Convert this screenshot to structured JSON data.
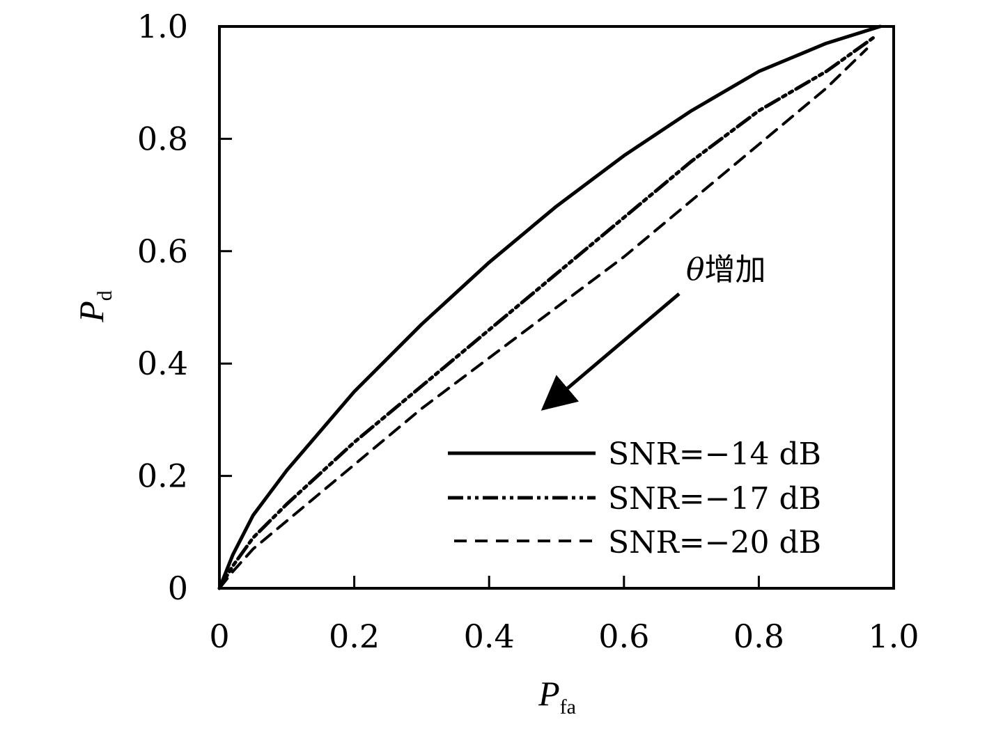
{
  "chart_data": {
    "type": "line",
    "xlabel": "P",
    "xlabel_sub": "fa",
    "ylabel": "P",
    "ylabel_sub": "d",
    "xlim": [
      0,
      1.0
    ],
    "ylim": [
      0,
      1.0
    ],
    "x_ticks": [
      "0",
      "0.2",
      "0.4",
      "0.6",
      "0.8",
      "1.0"
    ],
    "y_ticks": [
      "0",
      "0.2",
      "0.4",
      "0.6",
      "0.8",
      "1.0"
    ],
    "x_tick_values": [
      0,
      0.2,
      0.4,
      0.6,
      0.8,
      1.0
    ],
    "y_tick_values": [
      0,
      0.2,
      0.4,
      0.6,
      0.8,
      1.0
    ],
    "grid": false,
    "legend_position": "bottom-right",
    "annotation": {
      "theta": "θ",
      "text": "增加"
    },
    "series": [
      {
        "name": "SNR=−14 dB",
        "style": "solid",
        "x": [
          0,
          0.02,
          0.05,
          0.1,
          0.15,
          0.2,
          0.25,
          0.3,
          0.4,
          0.5,
          0.6,
          0.7,
          0.8,
          0.9,
          0.98
        ],
        "y": [
          0,
          0.06,
          0.13,
          0.21,
          0.28,
          0.35,
          0.41,
          0.47,
          0.58,
          0.68,
          0.77,
          0.85,
          0.92,
          0.97,
          1.0
        ]
      },
      {
        "name": "SNR=−17 dB",
        "style": "dashdot",
        "x": [
          0,
          0.02,
          0.05,
          0.1,
          0.2,
          0.3,
          0.4,
          0.5,
          0.6,
          0.7,
          0.8,
          0.9,
          0.97
        ],
        "y": [
          0,
          0.04,
          0.09,
          0.15,
          0.26,
          0.36,
          0.46,
          0.56,
          0.66,
          0.76,
          0.85,
          0.92,
          0.98
        ]
      },
      {
        "name": "SNR=−20 dB",
        "style": "dashed",
        "x": [
          0,
          0.02,
          0.05,
          0.1,
          0.2,
          0.3,
          0.4,
          0.5,
          0.6,
          0.7,
          0.8,
          0.9,
          0.96
        ],
        "y": [
          0,
          0.03,
          0.07,
          0.12,
          0.22,
          0.32,
          0.41,
          0.5,
          0.59,
          0.69,
          0.79,
          0.89,
          0.96
        ]
      }
    ]
  }
}
